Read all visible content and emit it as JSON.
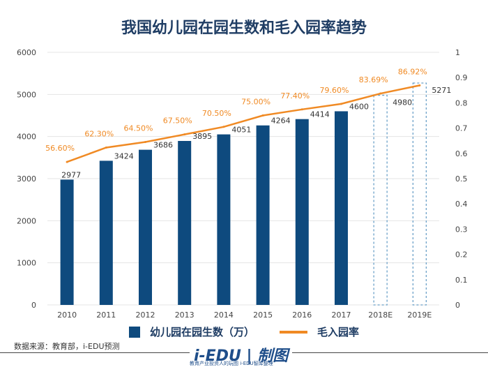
{
  "title": "我国幼儿园在园生数和毛入园率趋势",
  "source": "数据来源：教育部，i-EDU预测",
  "brand": {
    "logo": "i-EDU",
    "mark": "制图",
    "tagline": "教育产业投资人的玩图  i-EDU智库整理"
  },
  "legend": {
    "bar_label": "幼儿园在园生数（万）",
    "line_label": "毛入园率"
  },
  "colors": {
    "bar": "#0e4a7e",
    "line": "#f08a24",
    "title": "#1f3d64",
    "forecast": "#6aa0c8"
  },
  "chart_data": {
    "type": "bar",
    "title": "我国幼儿园在园生数和毛入园率趋势",
    "categories": [
      "2010",
      "2011",
      "2012",
      "2013",
      "2014",
      "2015",
      "2016",
      "2017",
      "2018E",
      "2019E"
    ],
    "series": [
      {
        "name": "幼儿园在园生数（万）",
        "type": "bar",
        "axis": "left",
        "values": [
          2977,
          3424,
          3686,
          3895,
          4051,
          4264,
          4414,
          4600,
          4980,
          5271
        ],
        "labels": [
          "2977",
          "3424",
          "3686",
          "3895",
          "4051",
          "4264",
          "4414",
          "4600",
          "4980",
          "5271"
        ],
        "forecast": [
          false,
          false,
          false,
          false,
          false,
          false,
          false,
          false,
          true,
          true
        ]
      },
      {
        "name": "毛入园率",
        "type": "line",
        "axis": "right",
        "values": [
          0.566,
          0.623,
          0.645,
          0.675,
          0.705,
          0.75,
          0.774,
          0.796,
          0.8369,
          0.8692
        ],
        "labels": [
          "56.60%",
          "62.30%",
          "64.50%",
          "67.50%",
          "70.50%",
          "75.00%",
          "77.40%",
          "79.60%",
          "83.69%",
          "86.92%"
        ]
      }
    ],
    "y_left": {
      "range": [
        0,
        6000
      ],
      "ticks": [
        "0",
        "1000",
        "2000",
        "3000",
        "4000",
        "5000",
        "6000"
      ]
    },
    "y_right": {
      "range": [
        0,
        1
      ],
      "ticks": [
        "0",
        "0.1",
        "0.2",
        "0.3",
        "0.4",
        "0.5",
        "0.6",
        "0.7",
        "0.8",
        "0.9",
        "1"
      ]
    },
    "grid": true,
    "legend_position": "bottom"
  }
}
